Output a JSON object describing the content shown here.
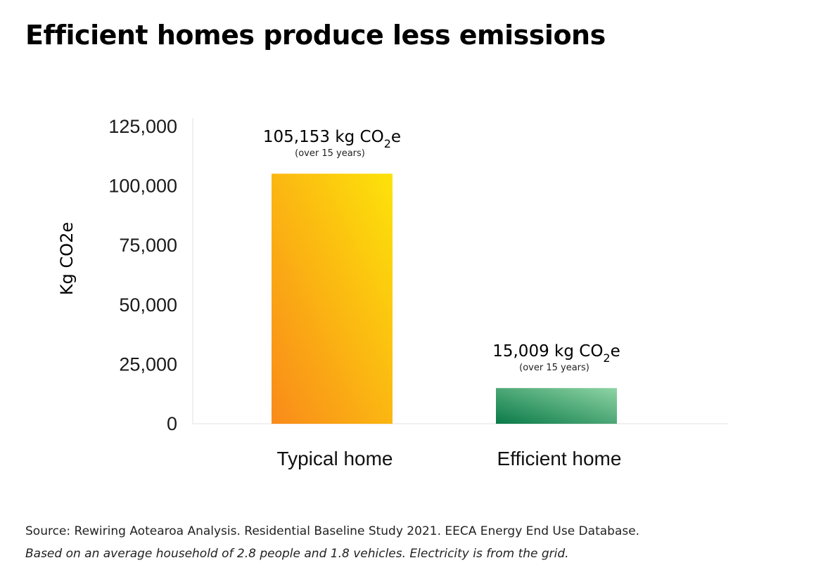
{
  "title": "Efficient homes produce less emissions",
  "chart_data": {
    "type": "bar",
    "categories": [
      "Typical home",
      "Efficient home"
    ],
    "values": [
      105153,
      15009
    ],
    "title": "Efficient homes produce less emissions",
    "xlabel": "",
    "ylabel": "Kg CO2e",
    "ylim": [
      0,
      125000
    ],
    "yticks": [
      "0",
      "25,000",
      "50,000",
      "75,000",
      "100,000",
      "125,000"
    ],
    "grid": false,
    "legend": "none",
    "data_labels": [
      {
        "main": "105,153 kg CO",
        "sub": "2",
        "suffix": "e",
        "note": "(over 15 years)"
      },
      {
        "main": "15,009 kg CO",
        "sub": "2",
        "suffix": "e",
        "note": "(over 15 years)"
      }
    ],
    "bar_colors": [
      {
        "from": "#f98a1a",
        "to": "#fde30a"
      },
      {
        "from": "#0a7a48",
        "to": "#8fd4a4"
      }
    ]
  },
  "footer": {
    "source": "Source: Rewiring Aotearoa Analysis. Residential Baseline Study 2021. EECA Energy End Use Database.",
    "note": "Based on an average household of 2.8 people and 1.8 vehicles. Electricity is from the grid."
  }
}
